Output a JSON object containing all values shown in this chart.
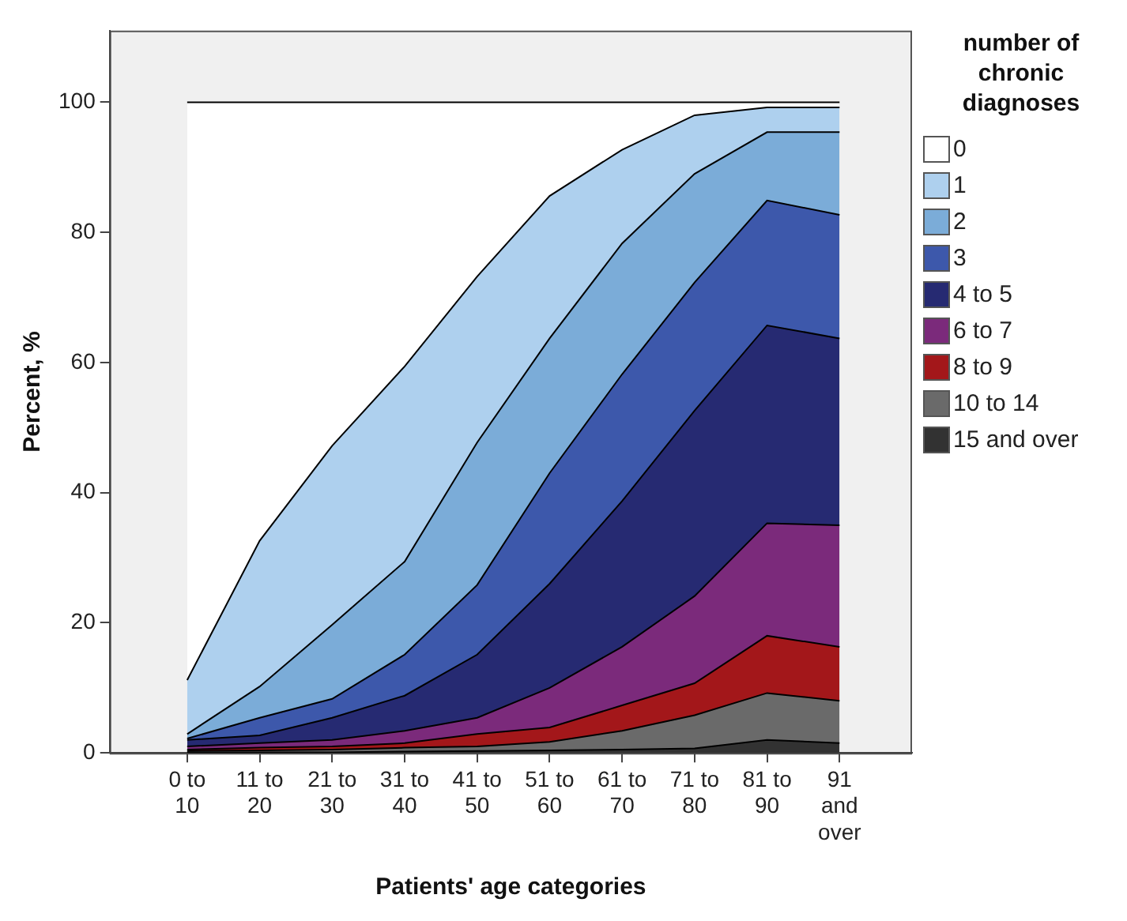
{
  "chart_data": {
    "type": "area",
    "stacked": true,
    "xlabel": "Patients' age categories",
    "ylabel": "Percent, %",
    "legend_title": "number of chronic diagnoses",
    "legend": "right",
    "grid": false,
    "categories": [
      "0 to 10",
      "11 to 20",
      "21 to 30",
      "31 to 40",
      "41 to 50",
      "51 to 60",
      "61 to 70",
      "71 to 80",
      "81 to 90",
      "91 and over"
    ],
    "ylim": [
      0,
      111
    ],
    "yticks": [
      0,
      20,
      40,
      60,
      80,
      100
    ],
    "series": [
      {
        "name": "15 and over",
        "color": "#323232",
        "values": [
          0.1,
          0.1,
          0.1,
          0.2,
          0.3,
          0.4,
          0.5,
          0.7,
          2.0,
          1.5
        ]
      },
      {
        "name": "10 to 14",
        "color": "#6a6a6a",
        "values": [
          0.2,
          0.3,
          0.4,
          0.6,
          0.7,
          1.3,
          2.9,
          5.1,
          7.2,
          6.5
        ]
      },
      {
        "name": "8 to 9",
        "color": "#a3171a",
        "values": [
          0.2,
          0.4,
          0.5,
          0.7,
          1.9,
          2.2,
          3.9,
          4.9,
          8.8,
          8.3
        ]
      },
      {
        "name": "6 to 7",
        "color": "#7b2a7b",
        "values": [
          0.5,
          0.7,
          1.0,
          1.9,
          2.5,
          6.1,
          9.0,
          13.4,
          17.3,
          18.7
        ]
      },
      {
        "name": "4 to 5",
        "color": "#262a72",
        "values": [
          1.0,
          1.2,
          3.4,
          5.4,
          9.7,
          16.0,
          22.4,
          28.5,
          30.4,
          28.7
        ]
      },
      {
        "name": "3",
        "color": "#3d58ab",
        "values": [
          0.2,
          2.7,
          2.9,
          6.3,
          10.7,
          17.0,
          19.5,
          19.7,
          19.2,
          19.0
        ]
      },
      {
        "name": "2",
        "color": "#7bacd8",
        "values": [
          0.7,
          4.8,
          11.4,
          14.3,
          21.9,
          20.7,
          20.1,
          16.7,
          10.5,
          12.7
        ]
      },
      {
        "name": "1",
        "color": "#aed0ee",
        "values": [
          8.3,
          22.4,
          27.5,
          30.0,
          25.5,
          21.9,
          14.4,
          9.0,
          3.8,
          3.8
        ]
      },
      {
        "name": "0",
        "color": "#ffffff",
        "values": [
          88.8,
          67.4,
          52.8,
          40.6,
          26.8,
          14.4,
          7.3,
          2.0,
          0.8,
          0.8
        ]
      }
    ]
  }
}
